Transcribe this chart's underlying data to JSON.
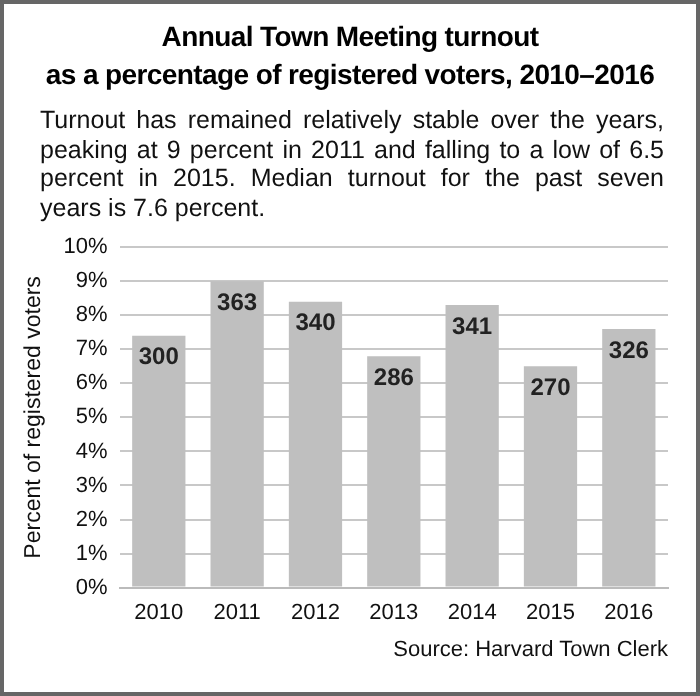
{
  "chart_data": {
    "type": "bar",
    "title": "Annual Town Meeting turnout\nas a percentage of registered voters, 2010–2016",
    "subtitle": "Turnout has remained relatively stable over the years, peaking at 9 percent in 2011 and falling to a low of 6.5 percent in 2015. Median turnout for the past seven years is 7.6 percent.",
    "ylabel": "Percent of registered voters",
    "categories": [
      "2010",
      "2011",
      "2012",
      "2013",
      "2014",
      "2015",
      "2016"
    ],
    "values": [
      7.4,
      9.0,
      8.4,
      6.8,
      8.3,
      6.5,
      7.6
    ],
    "color": "#bfbfbf",
    "ylim": [
      0,
      10
    ],
    "yticks": [
      {
        "value": 0,
        "label": "0%"
      },
      {
        "value": 1,
        "label": "1%"
      },
      {
        "value": 2,
        "label": "2%"
      },
      {
        "value": 3,
        "label": "3%"
      },
      {
        "value": 4,
        "label": "4%"
      },
      {
        "value": 5,
        "label": "5%"
      },
      {
        "value": 6,
        "label": "6%"
      },
      {
        "value": 7,
        "label": "7%"
      },
      {
        "value": 8,
        "label": "8%"
      },
      {
        "value": 9,
        "label": "9%"
      },
      {
        "value": 10,
        "label": "10%"
      }
    ],
    "grid": "y",
    "annotations": [
      {
        "text": "300",
        "x": "2010",
        "y": 7.4
      },
      {
        "text": "363",
        "x": "2011",
        "y": 9.0
      },
      {
        "text": "340",
        "x": "2012",
        "y": 8.4
      },
      {
        "text": "286",
        "x": "2013",
        "y": 6.8
      },
      {
        "text": "341",
        "x": "2014",
        "y": 8.3
      },
      {
        "text": "270",
        "x": "2015",
        "y": 6.5
      },
      {
        "text": "326",
        "x": "2016",
        "y": 7.6
      },
      "Source: Harvard Town Clerk"
    ]
  }
}
